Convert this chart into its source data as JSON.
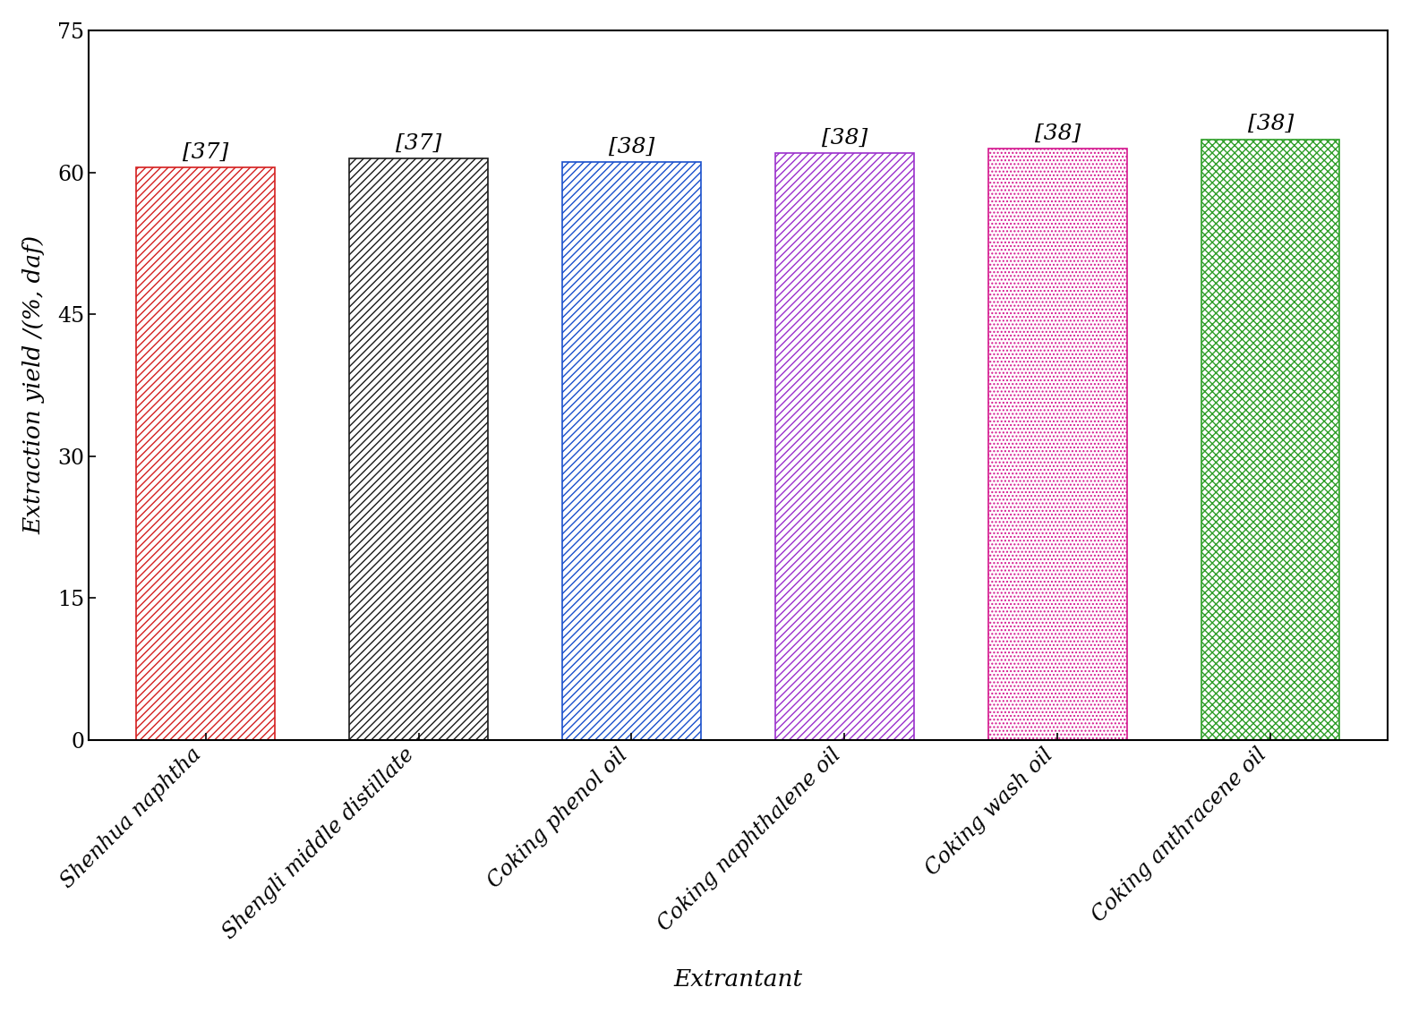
{
  "categories": [
    "Shenhua naphtha",
    "Shengli middle distillate",
    "Coking phenol oil",
    "Coking naphthalene oil",
    "Coking wash oil",
    "Coking anthracene oil"
  ],
  "values": [
    60.5,
    61.5,
    61.1,
    62.0,
    62.5,
    63.5
  ],
  "labels": [
    "[37]",
    "[37]",
    "[38]",
    "[38]",
    "[38]",
    "[38]"
  ],
  "edge_colors": [
    "#D42020",
    "#1A1A1A",
    "#1A50CC",
    "#9B30CC",
    "#D4178F",
    "#2E9E28"
  ],
  "face_colors": [
    "#FFFFFF",
    "#FFFFFF",
    "#FFFFFF",
    "#FFFFFF",
    "#FFFFFF",
    "#FFFFFF"
  ],
  "hatch_patterns": [
    "////",
    "////",
    "////",
    "////",
    "....",
    "xxxx"
  ],
  "hatch_colors": [
    "#D42020",
    "#1A1A1A",
    "#1A50CC",
    "#9B30CC",
    "#D4178F",
    "#2E9E28"
  ],
  "xlabel": "Extrantant",
  "ylabel": "Extraction yield /(%, daf)",
  "ylim": [
    0,
    75
  ],
  "yticks": [
    0,
    15,
    30,
    45,
    60,
    75
  ],
  "background_color": "#FFFFFF",
  "bar_width": 0.65,
  "label_fontsize": 18,
  "tick_fontsize": 17,
  "axis_label_fontsize": 19,
  "xtick_rotation": 45
}
